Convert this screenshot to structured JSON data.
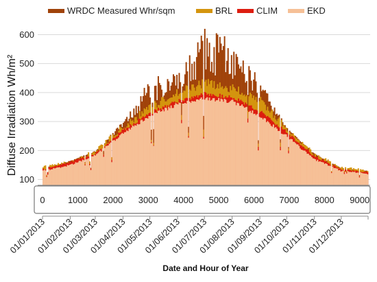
{
  "chart_data": {
    "type": "bar",
    "title": "",
    "xlabel": "Date and Hour of Year",
    "ylabel": "Diffuse Irradiation Wh/m²",
    "ylim": [
      80,
      620
    ],
    "y_ticks": [
      100,
      200,
      300,
      400,
      500,
      600
    ],
    "hour_axis": {
      "range": [
        0,
        9200
      ],
      "ticks": [
        0,
        1000,
        2000,
        3000,
        4000,
        5000,
        6000,
        7000,
        8000,
        9000
      ]
    },
    "date_axis": {
      "ticks": [
        "01/01/2013",
        "01/02/2013",
        "01/03/2013",
        "01/04/2013",
        "01/05/2013",
        "01/06/2013",
        "01/07/2013",
        "01/08/2013",
        "01/09/2013",
        "01/10/2013",
        "01/11/2013",
        "01/12/2013"
      ]
    },
    "grid": true,
    "legend": {
      "position": "top"
    },
    "days": [
      1,
      32,
      60,
      91,
      121,
      152,
      182,
      213,
      244,
      274,
      305,
      335,
      365
    ],
    "series": [
      {
        "name": "WRDC Measured Whr/sqm",
        "color": "#a0430a",
        "values": [
          140,
          165,
          200,
          300,
          440,
          480,
          620,
          580,
          440,
          280,
          190,
          140,
          130
        ]
      },
      {
        "name": "BRL",
        "color": "#d4950e",
        "values": [
          140,
          160,
          195,
          280,
          345,
          395,
          430,
          410,
          370,
          275,
          185,
          140,
          128
        ]
      },
      {
        "name": "CLIM",
        "color": "#dd1d10",
        "values": [
          135,
          160,
          190,
          270,
          330,
          370,
          395,
          385,
          335,
          265,
          180,
          135,
          125
        ]
      },
      {
        "name": "EKD",
        "color": "#f6c097",
        "values": [
          130,
          150,
          185,
          260,
          320,
          360,
          380,
          370,
          320,
          250,
          170,
          130,
          120
        ]
      }
    ]
  }
}
